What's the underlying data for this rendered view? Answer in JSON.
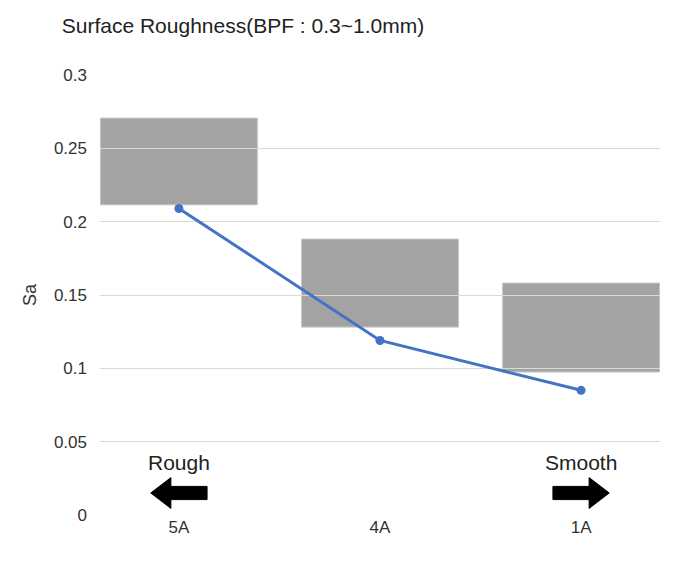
{
  "chart_data": {
    "type": "line",
    "title": "Surface Roughness(BPF : 0.3~1.0mm)",
    "y_label": "Sa",
    "categories": [
      "5A",
      "4A",
      "1A"
    ],
    "values": [
      0.209,
      0.119,
      0.085
    ],
    "color": "#4472c4",
    "marker": "circle",
    "ylim": [
      0,
      0.3
    ],
    "yticks": [
      0,
      0.05,
      0.1,
      0.15,
      0.2,
      0.25,
      0.3
    ],
    "grid": true,
    "annotations": [
      {
        "text": "Rough",
        "x": "5A"
      },
      {
        "text": "Smooth",
        "x": "1A"
      }
    ]
  }
}
